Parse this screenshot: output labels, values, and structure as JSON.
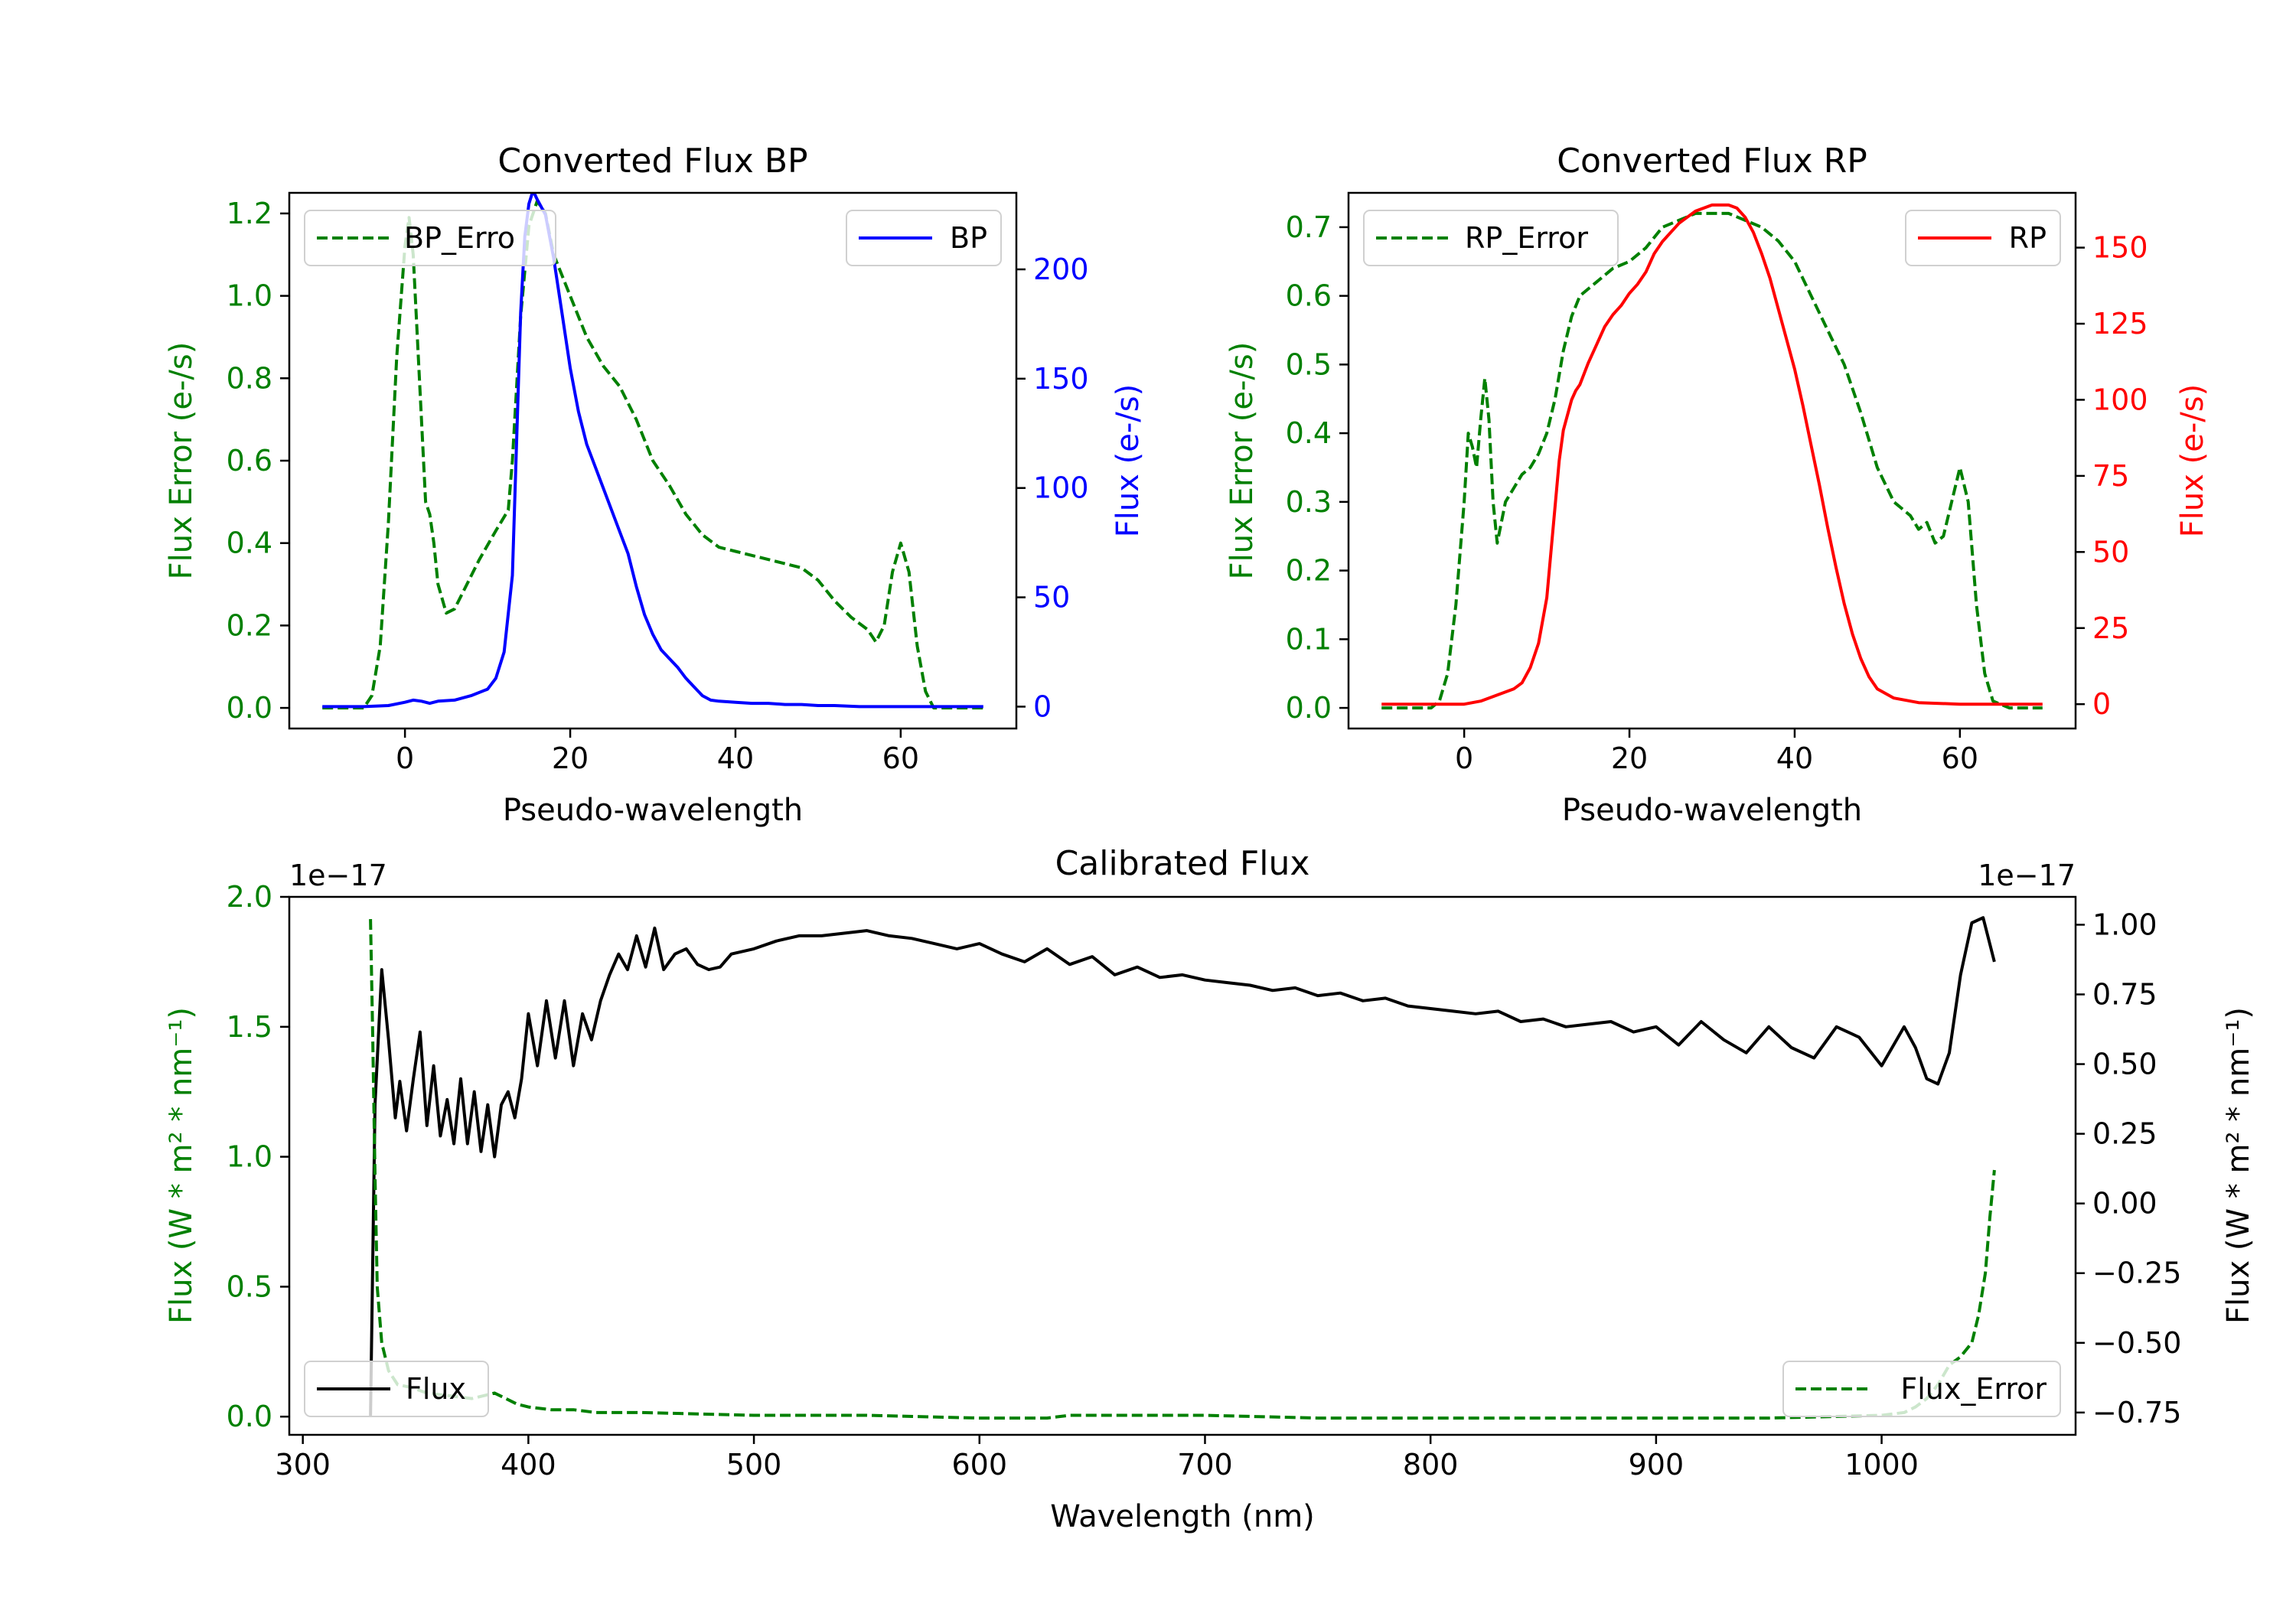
{
  "colors": {
    "green": "#008000",
    "blue": "#0000ff",
    "red": "#ff0000",
    "black": "#000000"
  },
  "chart_data": [
    {
      "type": "line",
      "title": "Converted Flux BP",
      "xlabel": "Pseudo-wavelength",
      "ylabel_left": "Flux Error (e-/s)",
      "ylabel_right": "Flux (e-/s)",
      "xlim": [
        -14,
        74
      ],
      "ylim_left": [
        -0.05,
        1.25
      ],
      "ylim_right": [
        -10,
        235
      ],
      "xticks": [
        0,
        20,
        40,
        60
      ],
      "yticks_left": [
        0.0,
        0.2,
        0.4,
        0.6,
        0.8,
        1.0,
        1.2
      ],
      "yticks_left_labels": [
        "0.0",
        "0.2",
        "0.4",
        "0.6",
        "0.8",
        "1.0",
        "1.2"
      ],
      "yticks_right": [
        0,
        50,
        100,
        150,
        200
      ],
      "legend_left": "top-left",
      "legend_right": "top-right",
      "series": [
        {
          "name": "BP_Error",
          "axis": "left",
          "style": "dashed",
          "color": "#008000",
          "legend_text": "BP_Erro",
          "x": [
            -10,
            -5,
            -4,
            -3,
            -2,
            -1,
            0,
            0.5,
            1,
            2,
            2.5,
            3,
            3.5,
            4,
            5,
            6,
            7,
            9,
            11,
            12.5,
            13,
            14,
            15,
            16,
            17,
            18,
            20,
            22,
            24,
            26,
            28,
            30,
            32,
            34,
            36,
            38,
            40,
            44,
            48,
            50,
            52,
            54,
            56,
            57,
            58,
            59,
            60,
            61,
            62,
            63,
            64,
            66,
            70
          ],
          "y": [
            0,
            0,
            0.03,
            0.15,
            0.45,
            0.85,
            1.12,
            1.19,
            1.1,
            0.7,
            0.5,
            0.47,
            0.4,
            0.3,
            0.23,
            0.24,
            0.28,
            0.36,
            0.43,
            0.48,
            0.6,
            0.95,
            1.17,
            1.23,
            1.2,
            1.1,
            1.0,
            0.9,
            0.83,
            0.78,
            0.7,
            0.6,
            0.54,
            0.47,
            0.42,
            0.39,
            0.38,
            0.36,
            0.34,
            0.31,
            0.26,
            0.22,
            0.19,
            0.16,
            0.2,
            0.33,
            0.4,
            0.33,
            0.15,
            0.04,
            0,
            0,
            0
          ]
        },
        {
          "name": "BP",
          "axis": "right",
          "style": "solid",
          "color": "#0000ff",
          "legend_text": "BP",
          "x": [
            -10,
            -5,
            -2,
            0,
            1,
            2,
            3,
            4,
            6,
            8,
            10,
            11,
            12,
            13,
            13.5,
            14,
            14.5,
            15,
            15.5,
            16,
            17,
            18,
            19,
            20,
            21,
            22,
            23,
            24,
            25,
            26,
            27,
            28,
            29,
            30,
            31,
            32,
            33,
            34,
            35,
            36,
            37,
            38,
            40,
            42,
            44,
            46,
            48,
            50,
            52,
            55,
            60,
            65,
            70
          ],
          "y": [
            0,
            0,
            0.5,
            2,
            3,
            2.5,
            1.5,
            2.5,
            3,
            5,
            8,
            13,
            25,
            60,
            120,
            180,
            215,
            230,
            236,
            232,
            225,
            205,
            180,
            155,
            135,
            120,
            110,
            100,
            90,
            80,
            70,
            55,
            42,
            33,
            26,
            22,
            18,
            13,
            9,
            5,
            3,
            2.5,
            2,
            1.5,
            1.5,
            1,
            1,
            0.5,
            0.5,
            0,
            0,
            0,
            0
          ]
        }
      ]
    },
    {
      "type": "line",
      "title": "Converted Flux RP",
      "xlabel": "Pseudo-wavelength",
      "ylabel_left": "Flux Error (e-/s)",
      "ylabel_right": "Flux (e-/s)",
      "xlim": [
        -14,
        74
      ],
      "ylim_left": [
        -0.03,
        0.75
      ],
      "ylim_right": [
        -8,
        168
      ],
      "xticks": [
        0,
        20,
        40,
        60
      ],
      "yticks_left": [
        0.0,
        0.1,
        0.2,
        0.3,
        0.4,
        0.5,
        0.6,
        0.7
      ],
      "yticks_left_labels": [
        "0.0",
        "0.1",
        "0.2",
        "0.3",
        "0.4",
        "0.5",
        "0.6",
        "0.7"
      ],
      "yticks_right": [
        0,
        25,
        50,
        75,
        100,
        125,
        150
      ],
      "legend_left": "top-left",
      "legend_right": "top-right",
      "series": [
        {
          "name": "RP_Error",
          "axis": "left",
          "style": "dashed",
          "color": "#008000",
          "legend_text": "RP_Error",
          "x": [
            -10,
            -4,
            -3,
            -2,
            -1,
            0,
            0.5,
            1,
            1.5,
            2,
            2.5,
            3,
            3.5,
            4,
            5,
            6,
            7,
            8,
            9,
            10,
            11,
            12,
            13,
            14,
            15,
            16,
            18,
            20,
            22,
            24,
            26,
            28,
            30,
            32,
            34,
            36,
            38,
            40,
            42,
            44,
            46,
            48,
            50,
            52,
            54,
            55,
            56,
            57,
            58,
            59,
            60,
            61,
            62,
            63,
            64,
            66,
            70
          ],
          "y": [
            0,
            0,
            0.01,
            0.05,
            0.15,
            0.3,
            0.4,
            0.38,
            0.35,
            0.42,
            0.48,
            0.42,
            0.3,
            0.24,
            0.3,
            0.32,
            0.34,
            0.35,
            0.37,
            0.4,
            0.45,
            0.52,
            0.57,
            0.6,
            0.61,
            0.62,
            0.64,
            0.65,
            0.67,
            0.7,
            0.71,
            0.72,
            0.72,
            0.72,
            0.71,
            0.7,
            0.68,
            0.65,
            0.6,
            0.55,
            0.5,
            0.43,
            0.35,
            0.3,
            0.28,
            0.26,
            0.27,
            0.24,
            0.25,
            0.3,
            0.35,
            0.3,
            0.15,
            0.05,
            0.01,
            0,
            0
          ]
        },
        {
          "name": "RP",
          "axis": "right",
          "style": "solid",
          "color": "#ff0000",
          "legend_text": "RP",
          "x": [
            -10,
            -5,
            0,
            2,
            4,
            6,
            7,
            8,
            9,
            10,
            10.5,
            11,
            11.5,
            12,
            12.5,
            13,
            13.5,
            14,
            15,
            16,
            17,
            18,
            19,
            20,
            21,
            22,
            23,
            24,
            25,
            26,
            27,
            28,
            29,
            30,
            31,
            32,
            33,
            34,
            35,
            36,
            37,
            38,
            39,
            40,
            41,
            42,
            43,
            44,
            45,
            46,
            47,
            48,
            49,
            50,
            52,
            55,
            60,
            65,
            70
          ],
          "y": [
            0,
            0,
            0,
            1,
            3,
            5,
            7,
            12,
            20,
            35,
            50,
            65,
            80,
            90,
            95,
            100,
            103,
            105,
            112,
            118,
            124,
            128,
            131,
            135,
            138,
            142,
            148,
            152,
            155,
            158,
            160,
            162,
            163,
            164,
            164,
            164,
            163,
            160,
            155,
            148,
            140,
            130,
            120,
            110,
            98,
            85,
            72,
            58,
            45,
            33,
            23,
            15,
            9,
            5,
            2,
            0.5,
            0,
            0,
            0
          ]
        }
      ]
    },
    {
      "type": "line",
      "title": "Calibrated Flux",
      "xlabel": "Wavelength (nm)",
      "ylabel_left": "Flux (W * m² * nm⁻¹)",
      "ylabel_right": "Flux (W * m² * nm⁻¹)",
      "offset_left": "1e−17",
      "offset_right": "1e−17",
      "xlim": [
        294,
        1086
      ],
      "ylim_left": [
        -0.07,
        2.0
      ],
      "ylim_right": [
        -0.83,
        1.1
      ],
      "xticks": [
        300,
        400,
        500,
        600,
        700,
        800,
        900,
        1000
      ],
      "yticks_left": [
        0.0,
        0.5,
        1.0,
        1.5,
        2.0
      ],
      "yticks_left_labels": [
        "0.0",
        "0.5",
        "1.0",
        "1.5",
        "2.0"
      ],
      "yticks_right": [
        1.0,
        0.75,
        0.5,
        0.25,
        0.0,
        -0.25,
        -0.5,
        -0.75
      ],
      "yticks_right_labels": [
        "1.00",
        "0.75",
        "0.50",
        "0.25",
        "0.00",
        "−0.25",
        "−0.50",
        "−0.75"
      ],
      "legend_left": "bottom-left",
      "legend_right": "bottom-right",
      "series": [
        {
          "name": "Flux",
          "axis": "left",
          "style": "solid",
          "color": "#000000",
          "legend_text": "Flux",
          "x": [
            330,
            332,
            335,
            338,
            341,
            343,
            346,
            349,
            352,
            355,
            358,
            361,
            364,
            367,
            370,
            373,
            376,
            379,
            382,
            385,
            388,
            391,
            394,
            397,
            400,
            404,
            408,
            412,
            416,
            420,
            424,
            428,
            432,
            436,
            440,
            444,
            448,
            452,
            456,
            460,
            465,
            470,
            475,
            480,
            485,
            490,
            500,
            510,
            520,
            530,
            540,
            550,
            560,
            570,
            580,
            590,
            600,
            610,
            620,
            630,
            640,
            650,
            660,
            670,
            680,
            690,
            700,
            710,
            720,
            730,
            740,
            750,
            760,
            770,
            780,
            790,
            800,
            810,
            820,
            830,
            840,
            850,
            860,
            870,
            880,
            890,
            900,
            910,
            920,
            930,
            940,
            950,
            960,
            970,
            980,
            990,
            1000,
            1010,
            1015,
            1020,
            1025,
            1030,
            1035,
            1040,
            1045,
            1050
          ],
          "y": [
            0.0,
            1.2,
            1.72,
            1.45,
            1.15,
            1.29,
            1.1,
            1.3,
            1.48,
            1.12,
            1.35,
            1.08,
            1.22,
            1.05,
            1.3,
            1.05,
            1.25,
            1.02,
            1.2,
            1.0,
            1.2,
            1.25,
            1.15,
            1.3,
            1.55,
            1.35,
            1.6,
            1.38,
            1.6,
            1.35,
            1.55,
            1.45,
            1.6,
            1.7,
            1.78,
            1.72,
            1.85,
            1.73,
            1.88,
            1.72,
            1.78,
            1.8,
            1.74,
            1.72,
            1.73,
            1.78,
            1.8,
            1.83,
            1.85,
            1.85,
            1.86,
            1.87,
            1.85,
            1.84,
            1.82,
            1.8,
            1.82,
            1.78,
            1.75,
            1.8,
            1.74,
            1.77,
            1.7,
            1.73,
            1.69,
            1.7,
            1.68,
            1.67,
            1.66,
            1.64,
            1.65,
            1.62,
            1.63,
            1.6,
            1.61,
            1.58,
            1.57,
            1.56,
            1.55,
            1.56,
            1.52,
            1.53,
            1.5,
            1.51,
            1.52,
            1.48,
            1.5,
            1.43,
            1.52,
            1.45,
            1.4,
            1.5,
            1.42,
            1.38,
            1.5,
            1.46,
            1.35,
            1.5,
            1.42,
            1.3,
            1.28,
            1.4,
            1.7,
            1.9,
            1.92,
            1.75
          ]
        },
        {
          "name": "Flux_Error",
          "axis": "right",
          "style": "dashed",
          "color": "#008000",
          "legend_text": "Flux_Error",
          "x": [
            330,
            331,
            332,
            333,
            335,
            338,
            342,
            348,
            355,
            365,
            375,
            385,
            390,
            395,
            400,
            410,
            420,
            430,
            450,
            500,
            550,
            600,
            630,
            640,
            650,
            700,
            750,
            800,
            850,
            900,
            950,
            1000,
            1010,
            1015,
            1020,
            1025,
            1030,
            1035,
            1040,
            1043,
            1046,
            1048,
            1050
          ],
          "y": [
            1.02,
            0.6,
            0.1,
            -0.3,
            -0.5,
            -0.6,
            -0.65,
            -0.66,
            -0.68,
            -0.69,
            -0.7,
            -0.68,
            -0.7,
            -0.72,
            -0.73,
            -0.74,
            -0.74,
            -0.75,
            -0.75,
            -0.76,
            -0.76,
            -0.77,
            -0.77,
            -0.76,
            -0.76,
            -0.76,
            -0.77,
            -0.77,
            -0.77,
            -0.77,
            -0.77,
            -0.76,
            -0.75,
            -0.73,
            -0.7,
            -0.65,
            -0.58,
            -0.55,
            -0.5,
            -0.4,
            -0.25,
            -0.05,
            0.12
          ]
        }
      ]
    }
  ]
}
